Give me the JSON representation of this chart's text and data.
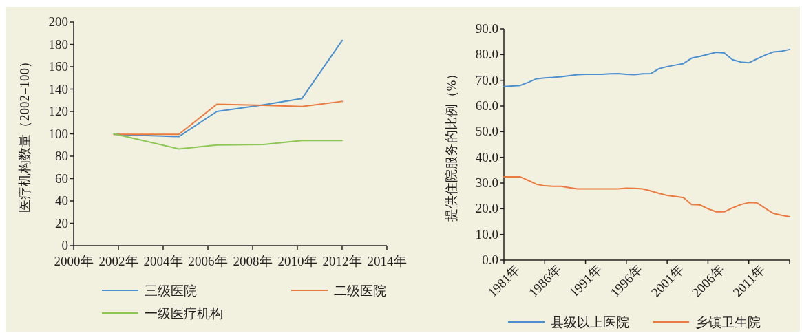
{
  "chart_data": [
    {
      "type": "line",
      "ylabel": "医疗机构数量（2002=100）",
      "x": [
        2001.8,
        2004.7,
        2006.4,
        2008.5,
        2010.2,
        2012.0
      ],
      "xlim": [
        2000,
        2014
      ],
      "xticks": [
        {
          "value": 2000,
          "label": "2000年"
        },
        {
          "value": 2002,
          "label": "2002年"
        },
        {
          "value": 2004,
          "label": "2004年"
        },
        {
          "value": 2006,
          "label": "2006年"
        },
        {
          "value": 2008,
          "label": "2008年"
        },
        {
          "value": 2010,
          "label": "2010年"
        },
        {
          "value": 2012,
          "label": "2012年"
        },
        {
          "value": 2014,
          "label": "2014年"
        }
      ],
      "ylim": [
        0,
        200
      ],
      "yticks": [
        0,
        20,
        40,
        60,
        80,
        100,
        120,
        140,
        160,
        180,
        200
      ],
      "grid": false,
      "legend": "bottom",
      "marker": "none",
      "line_style": "solid",
      "series": [
        {
          "name": "三级医院",
          "color": "#4a90d0",
          "values": [
            99.5,
            97.5,
            120,
            126,
            131.5,
            183.5
          ]
        },
        {
          "name": "二级医院",
          "color": "#ea7a3f",
          "values": [
            99.5,
            99.5,
            126.5,
            125.5,
            124.5,
            129
          ]
        },
        {
          "name": "一级医疗机构",
          "color": "#8cc653",
          "values": [
            100,
            86.5,
            90,
            90.5,
            94,
            94
          ]
        }
      ]
    },
    {
      "type": "line",
      "ylabel": "提供住院服务的比例（%）",
      "categories": [
        "1981年",
        null,
        null,
        null,
        null,
        "1986年",
        null,
        null,
        null,
        null,
        "1991年",
        null,
        null,
        null,
        null,
        "1996年",
        null,
        null,
        null,
        null,
        "2001年",
        null,
        null,
        null,
        null,
        "2006年",
        null,
        null,
        null,
        null,
        "2011年",
        null,
        null,
        null,
        null,
        null
      ],
      "ylim": [
        0,
        90
      ],
      "yticks": [
        {
          "value": 0,
          "label": "0.0"
        },
        {
          "value": 10,
          "label": "10.0"
        },
        {
          "value": 20,
          "label": "20.0"
        },
        {
          "value": 30,
          "label": "30.0"
        },
        {
          "value": 40,
          "label": "40.0"
        },
        {
          "value": 50,
          "label": "50.0"
        },
        {
          "value": 60,
          "label": "60.0"
        },
        {
          "value": 70,
          "label": "70.0"
        },
        {
          "value": 80,
          "label": "80.0"
        },
        {
          "value": 90,
          "label": "90.0"
        }
      ],
      "grid": false,
      "legend": "bottom",
      "marker": "none",
      "line_style": "solid",
      "series": [
        {
          "name": "县级以上医院",
          "color": "#4a90d0",
          "values": [
            67.6,
            67.8,
            68.0,
            69.2,
            70.6,
            70.9,
            71.1,
            71.4,
            71.8,
            72.2,
            72.3,
            72.3,
            72.3,
            72.5,
            72.6,
            72.3,
            72.2,
            72.5,
            72.6,
            74.5,
            75.3,
            75.9,
            76.5,
            78.6,
            79.3,
            80.1,
            80.9,
            80.6,
            78.0,
            77.1,
            76.8,
            78.3,
            79.8,
            81.0,
            81.3,
            82.0
          ]
        },
        {
          "name": "乡镇卫生院",
          "color": "#ea7a3f",
          "values": [
            32.4,
            32.4,
            32.4,
            31.0,
            29.5,
            28.9,
            28.7,
            28.7,
            28.2,
            27.7,
            27.7,
            27.7,
            27.7,
            27.7,
            27.7,
            28.0,
            27.9,
            27.7,
            26.9,
            26.0,
            25.2,
            24.8,
            24.3,
            21.6,
            21.5,
            20.0,
            18.8,
            18.8,
            20.3,
            21.6,
            22.4,
            22.3,
            20.2,
            18.2,
            17.5,
            16.9
          ]
        }
      ]
    }
  ]
}
